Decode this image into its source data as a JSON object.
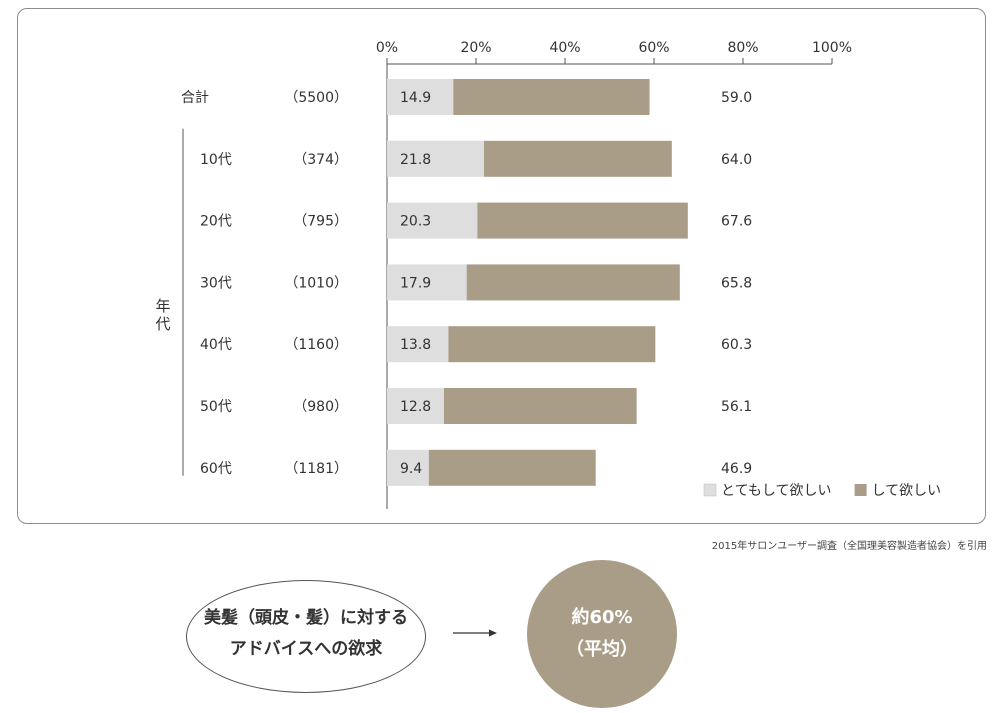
{
  "chart_data": {
    "type": "bar",
    "stacked": true,
    "orientation": "horizontal",
    "x_axis_ticks": [
      "0%",
      "20%",
      "40%",
      "60%",
      "80%",
      "100%"
    ],
    "xlim": [
      0,
      100
    ],
    "group_label": "年代",
    "categories": [
      "合計",
      "10代",
      "20代",
      "30代",
      "40代",
      "50代",
      "60代"
    ],
    "sample_sizes": [
      "（5500）",
      "（374）",
      "（795）",
      "（1010）",
      "（1160）",
      "（980）",
      "（1181）"
    ],
    "series": [
      {
        "name": "とてもして欲しい",
        "color": "#dedede",
        "values": [
          14.9,
          21.8,
          20.3,
          17.9,
          13.8,
          12.8,
          9.4
        ]
      },
      {
        "name": "して欲しい",
        "color": "#aa9d88",
        "values": [
          44.1,
          42.2,
          47.3,
          47.9,
          46.5,
          43.3,
          37.5
        ]
      }
    ],
    "totals": [
      59.0,
      64.0,
      67.6,
      65.8,
      60.3,
      56.1,
      46.9
    ],
    "legend_position": "bottom-right"
  },
  "source_note": "2015年サロンユーザー調査（全国理美容製造者協会）を引用",
  "summary": {
    "bubble_line1": "美髪（頭皮・髪）に対する",
    "bubble_line2": "アドバイスへの欲求",
    "result_line1": "約60%",
    "result_line2": "（平均）",
    "result_color": "#aa9d88"
  }
}
